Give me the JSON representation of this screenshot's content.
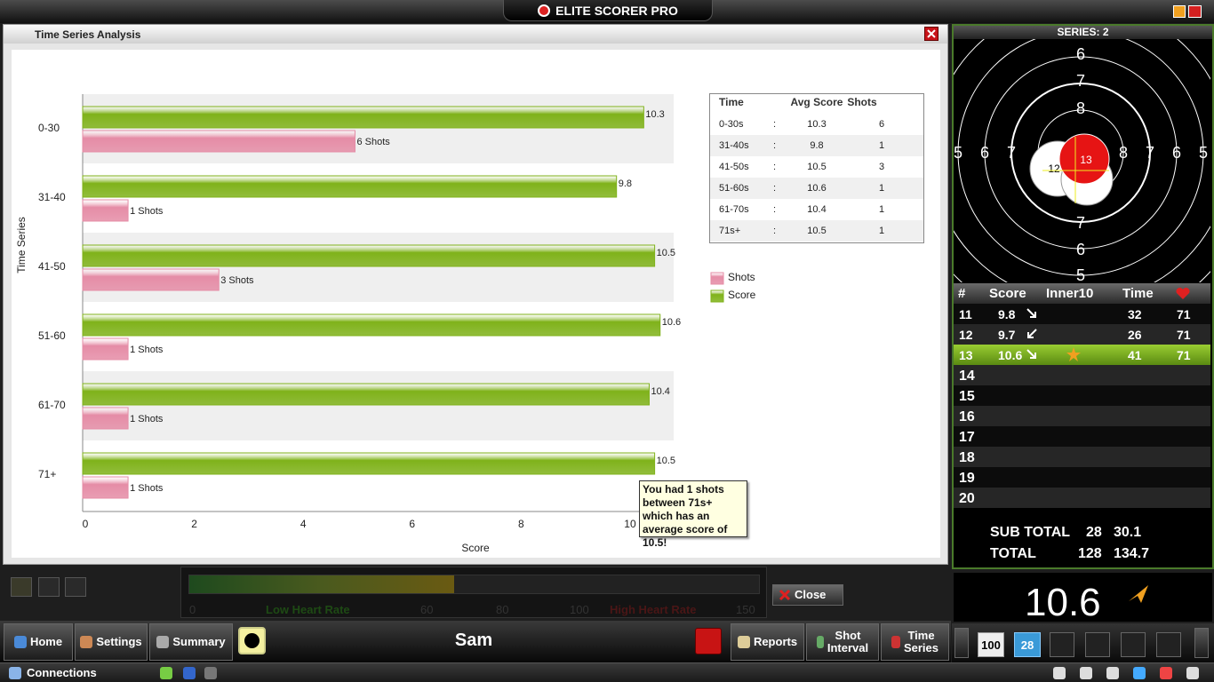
{
  "window_title": "ELITE SCORER PRO",
  "dialog_title": "Time Series Analysis",
  "chart_data": {
    "type": "bar",
    "orientation": "horizontal",
    "categories": [
      "0-30",
      "31-40",
      "41-50",
      "51-60",
      "61-70",
      "71+"
    ],
    "series": [
      {
        "name": "Score",
        "color": "#7fb21a",
        "values": [
          10.3,
          9.8,
          10.5,
          10.6,
          10.4,
          10.5
        ]
      },
      {
        "name": "Shots",
        "color": "#e58ca6",
        "axis": "x2",
        "values": [
          6,
          1,
          3,
          1,
          1,
          1
        ],
        "value_labels": [
          "6 Shots",
          "1 Shots",
          "3 Shots",
          "1 Shots",
          "1 Shots",
          "1 Shots"
        ]
      }
    ],
    "xlabel": "Score",
    "ylabel": "Time Series",
    "xlim": [
      0,
      10.8
    ],
    "xticks": [
      0,
      2,
      4,
      6,
      8,
      10
    ],
    "x2lim": [
      0,
      12.96
    ],
    "legend": "right",
    "tooltip": "You had 1 shots between 71s+ which has an average score of 10.5!"
  },
  "summary_table": {
    "header": [
      "Time",
      "Avg Score",
      "Shots"
    ],
    "rows": [
      [
        "0-30s",
        ":",
        "10.3",
        "6"
      ],
      [
        "31-40s",
        ":",
        "9.8",
        "1"
      ],
      [
        "41-50s",
        ":",
        "10.5",
        "3"
      ],
      [
        "51-60s",
        ":",
        "10.6",
        "1"
      ],
      [
        "61-70s",
        ":",
        "10.4",
        "1"
      ],
      [
        "71s+",
        ":",
        "10.5",
        "1"
      ]
    ]
  },
  "heart_rate": {
    "labels": [
      "0",
      "Low Heart Rate",
      "60",
      "80",
      "100",
      "High Heart Rate",
      "150"
    ]
  },
  "close_button": "Close",
  "toolbar": {
    "home": "Home",
    "settings": "Settings",
    "summary": "Summary",
    "shooter": "Sam",
    "reports": "Reports",
    "shot_interval": [
      "Shot",
      "Interval"
    ],
    "time_series": [
      "Time",
      "Series"
    ]
  },
  "status": "Connections",
  "series_title": "SERIES: 2",
  "target": {
    "ring_labels": [
      "6",
      "7",
      "8",
      "5",
      "6",
      "7",
      "8",
      "7",
      "6",
      "5",
      "7",
      "6",
      "5"
    ],
    "shot_labels": [
      "12",
      "13"
    ]
  },
  "shot_table": {
    "header": [
      "#",
      "Score",
      "Inner10",
      "Time"
    ],
    "rows": [
      {
        "n": 11,
        "score": 9.8,
        "time": 32,
        "hr": 71
      },
      {
        "n": 12,
        "score": 9.7,
        "time": 26,
        "hr": 71
      },
      {
        "n": 13,
        "score": 10.6,
        "time": 41,
        "hr": 71
      },
      {
        "n": 14
      },
      {
        "n": 15
      },
      {
        "n": 16
      },
      {
        "n": 17
      },
      {
        "n": 18
      },
      {
        "n": 19
      },
      {
        "n": 20
      }
    ]
  },
  "totals": [
    {
      "label": "SUB TOTAL",
      "count": 28,
      "score": 30.1
    },
    {
      "label": "TOTAL",
      "count": 128,
      "score": 134.7
    }
  ],
  "last_score": 10.6,
  "nav": [
    "100",
    "28"
  ]
}
